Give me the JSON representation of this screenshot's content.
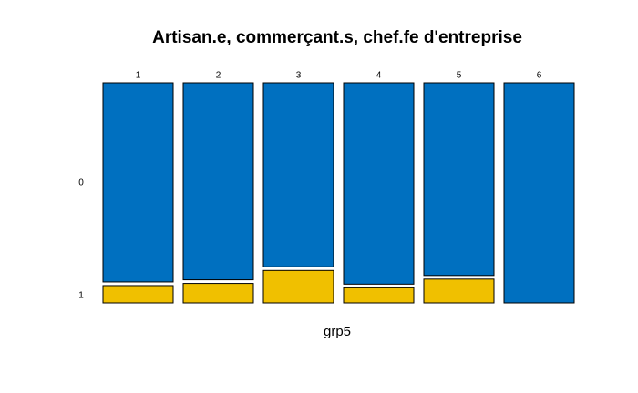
{
  "chart_data": {
    "type": "mosaic",
    "title": "Artisan.e, commerçant.s, chef.fe d'entreprise",
    "x_label": "grp5",
    "categories": [
      "1",
      "2",
      "3",
      "4",
      "5",
      "6"
    ],
    "series": [
      {
        "name": "0",
        "color": "#0070c0",
        "values": [
          0.92,
          0.91,
          0.85,
          0.93,
          0.89,
          1
        ]
      },
      {
        "name": "1",
        "color": "#f0c000",
        "values": [
          0.08,
          0.09,
          0.15,
          0.07,
          0.11,
          0
        ]
      }
    ]
  }
}
